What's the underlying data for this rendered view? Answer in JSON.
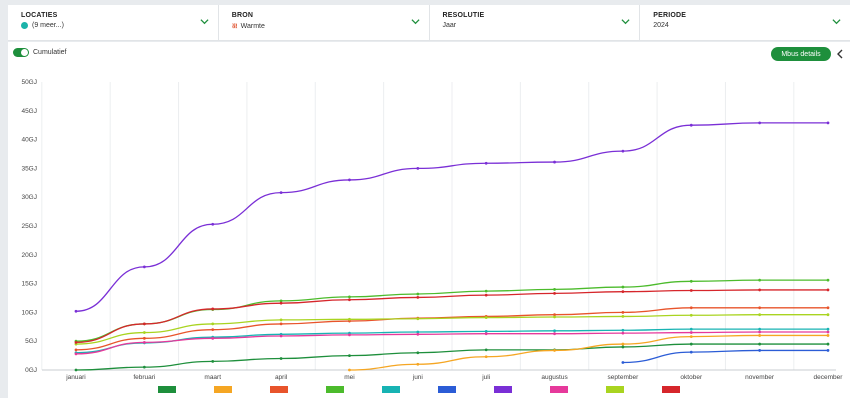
{
  "filters": [
    {
      "label": "LOCATIES",
      "value": "(9 meer...)",
      "icon": "teal-dot-icon"
    },
    {
      "label": "BRON",
      "value": "Warmte",
      "icon": "heat-icon"
    },
    {
      "label": "RESOLUTIE",
      "value": "Jaar",
      "icon": ""
    },
    {
      "label": "PERIODE",
      "value": "2024",
      "icon": ""
    }
  ],
  "toolbar": {
    "cumulative_label": "Cumulatief",
    "cumulative_on": true,
    "mbus_button": "Mbus details"
  },
  "chart_data": {
    "type": "line",
    "title": "",
    "xlabel": "",
    "ylabel": "",
    "ylim": [
      0,
      50
    ],
    "yticks": [
      "0GJ",
      "5GJ",
      "10GJ",
      "15GJ",
      "20GJ",
      "25GJ",
      "30GJ",
      "35GJ",
      "40GJ",
      "45GJ",
      "50GJ"
    ],
    "categories": [
      "januari",
      "februari",
      "maart",
      "april",
      "mei",
      "juni",
      "juli",
      "augustus",
      "september",
      "oktober",
      "november",
      "december"
    ],
    "grid": "vertical",
    "legend": "bottom",
    "series": [
      {
        "color": "#1e8f3c",
        "values": [
          0,
          0.5,
          1.5,
          2,
          2.5,
          3,
          3.5,
          3.5,
          4,
          4.5,
          4.5,
          4.5
        ]
      },
      {
        "color": "#f5a623",
        "values": [
          null,
          null,
          null,
          null,
          0,
          1,
          2.3,
          3.4,
          4.5,
          5.8,
          6,
          6
        ]
      },
      {
        "color": "#e8542b",
        "values": [
          3.5,
          5.5,
          7,
          8,
          8.5,
          9,
          9.3,
          9.6,
          10,
          10.8,
          10.8,
          10.8
        ]
      },
      {
        "color": "#4cbb2c",
        "values": [
          5,
          8,
          10.5,
          12,
          12.7,
          13.2,
          13.7,
          14,
          14.4,
          15.4,
          15.6,
          15.6
        ]
      },
      {
        "color": "#17b3b3",
        "values": [
          3,
          4.7,
          5.7,
          6.2,
          6.4,
          6.6,
          6.7,
          6.8,
          6.9,
          7.1,
          7.1,
          7.1
        ]
      },
      {
        "color": "#2b5cd6",
        "values": [
          null,
          null,
          null,
          null,
          null,
          null,
          null,
          null,
          1.3,
          3.1,
          3.4,
          3.4
        ]
      },
      {
        "color": "#7a2fd6",
        "values": [
          10.2,
          17.9,
          25.3,
          30.8,
          33,
          35,
          35.9,
          36.1,
          38,
          42.5,
          42.9,
          42.9
        ]
      },
      {
        "color": "#e6399b",
        "values": [
          2.8,
          4.8,
          5.5,
          5.9,
          6.1,
          6.2,
          6.3,
          6.3,
          6.4,
          6.5,
          6.6,
          6.6
        ]
      },
      {
        "color": "#a9d420",
        "values": [
          4.5,
          6.5,
          8,
          8.7,
          8.8,
          8.9,
          9.1,
          9.2,
          9.3,
          9.5,
          9.6,
          9.6
        ]
      },
      {
        "color": "#d6262b",
        "values": [
          4.8,
          8,
          10.6,
          11.6,
          12.2,
          12.6,
          13,
          13.3,
          13.6,
          13.8,
          13.9,
          13.9
        ]
      }
    ]
  }
}
